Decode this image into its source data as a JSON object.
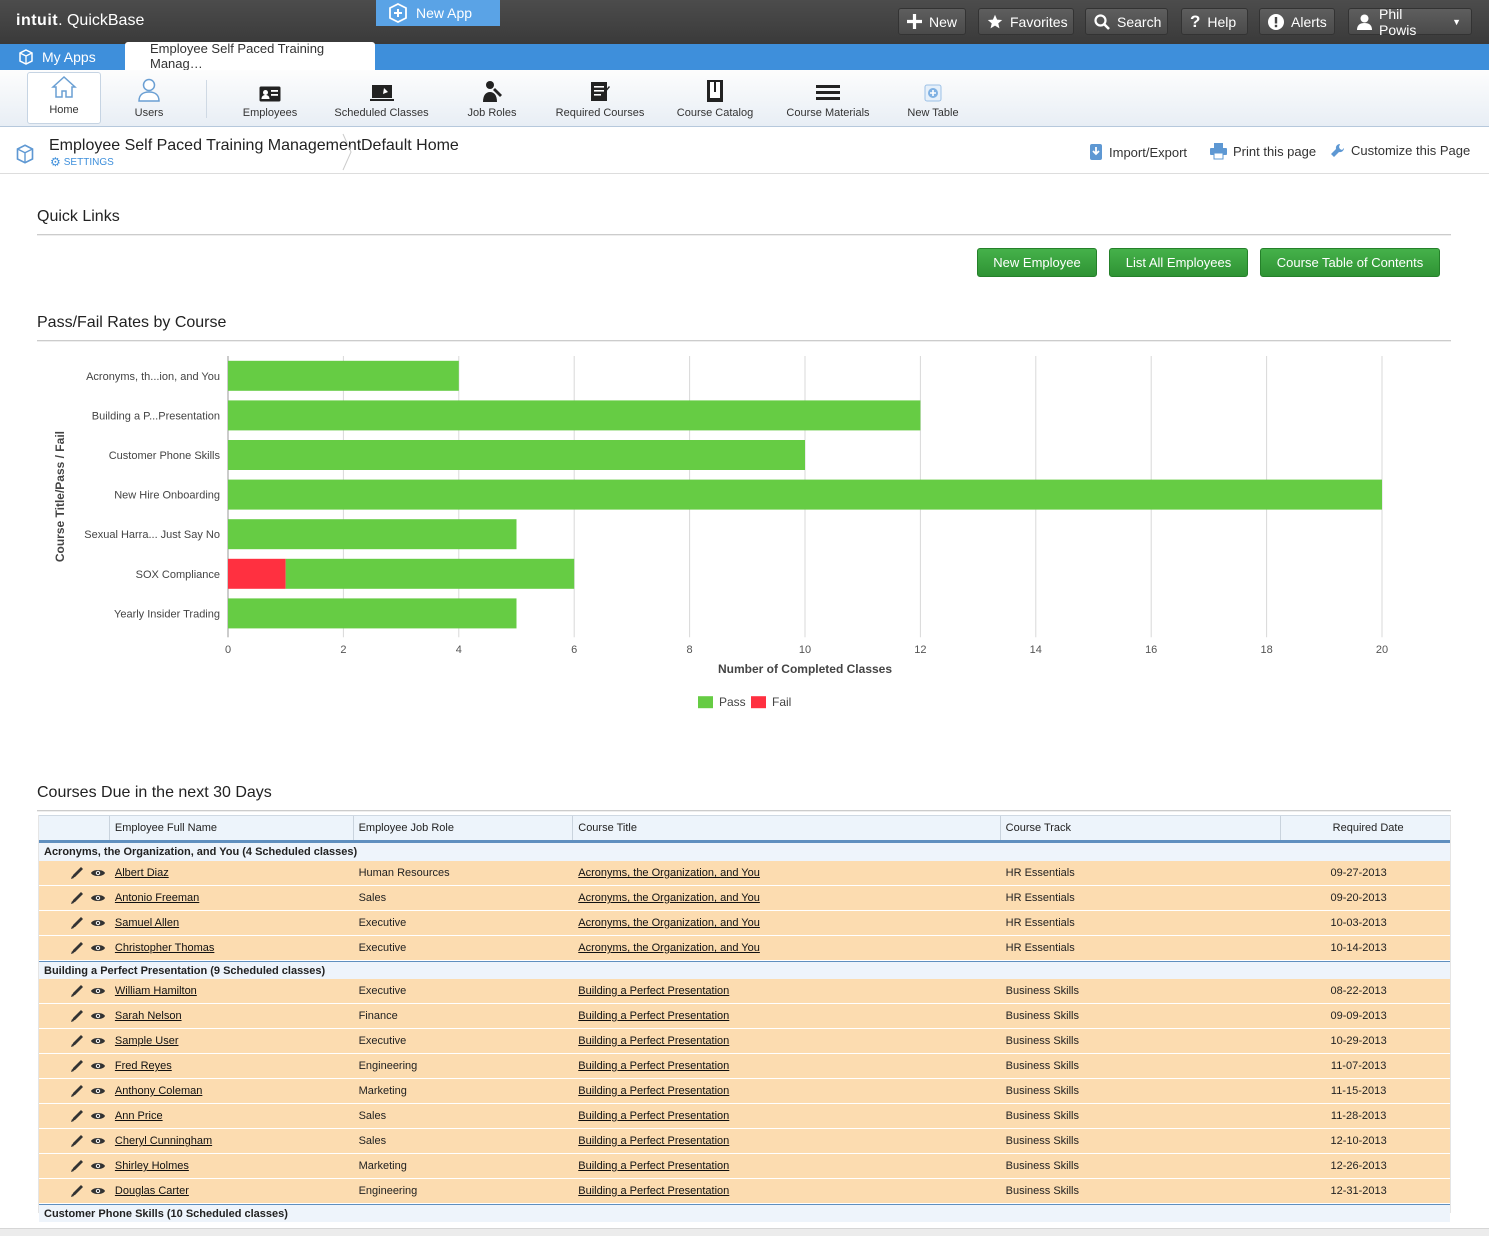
{
  "app": {
    "brand": "intuit",
    "product": "QuickBase",
    "topbar_buttons": [
      {
        "label": "New",
        "icon": "plus-icon"
      },
      {
        "label": "Favorites",
        "icon": "star-icon"
      },
      {
        "label": "Search",
        "icon": "search-icon"
      },
      {
        "label": "Help",
        "icon": "help-icon"
      },
      {
        "label": "Alerts",
        "icon": "alert-icon"
      },
      {
        "label": "Phil Powis",
        "icon": "user-icon"
      }
    ]
  },
  "tabs": {
    "my_apps": "My Apps",
    "active": "Employee Self Paced Training Manag…",
    "new_app": "New App"
  },
  "nav": [
    "Home",
    "Users",
    "Employees",
    "Scheduled Classes",
    "Job Roles",
    "Required Courses",
    "Course Catalog",
    "Course Materials",
    "New Table"
  ],
  "breadcrumb": {
    "app_title": "Employee Self Paced Training Management",
    "settings": "SETTINGS",
    "page": "Default Home",
    "actions": [
      "Import/Export",
      "Print this page",
      "Customize this Page"
    ]
  },
  "quick_links": {
    "title": "Quick Links",
    "buttons": [
      "New Employee",
      "List All Employees",
      "Course Table of Contents"
    ]
  },
  "chart_section": {
    "title": "Pass/Fail Rates by Course"
  },
  "chart_data": {
    "type": "bar",
    "orientation": "horizontal",
    "stacked": true,
    "categories": [
      "Acronyms, th...ion, and You",
      "Building a P...Presentation",
      "Customer Phone Skills",
      "New Hire Onboarding",
      "Sexual Harra... Just Say No",
      "SOX Compliance",
      "Yearly Insider Trading"
    ],
    "series": [
      {
        "name": "Fail",
        "color": "#ff3040",
        "values": [
          0,
          0,
          0,
          0,
          0,
          1,
          0
        ]
      },
      {
        "name": "Pass",
        "color": "#66cc44",
        "values": [
          4,
          12,
          10,
          20,
          5,
          5,
          5
        ]
      }
    ],
    "xlabel": "Number of Completed Classes",
    "ylabel": "Course Title/Pass / Fail",
    "xlim": [
      0,
      20
    ],
    "xticks": [
      0,
      2,
      4,
      6,
      8,
      10,
      12,
      14,
      16,
      18,
      20
    ],
    "grid": true,
    "legend": [
      "Pass",
      "Fail"
    ],
    "legend_position": "bottom-center"
  },
  "table": {
    "title": "Courses Due in the next 30 Days",
    "columns": [
      "Employee Full Name",
      "Employee Job Role",
      "Course Title",
      "Course Track",
      "Required Date"
    ],
    "groups": [
      {
        "label": "Acronyms, the Organization, and You  (4 Scheduled classes)",
        "rows": [
          [
            "Albert Diaz",
            "Human Resources",
            "Acronyms, the Organization, and You",
            "HR Essentials",
            "09-27-2013"
          ],
          [
            "Antonio Freeman",
            "Sales",
            "Acronyms, the Organization, and You",
            "HR Essentials",
            "09-20-2013"
          ],
          [
            "Samuel Allen",
            "Executive",
            "Acronyms, the Organization, and You",
            "HR Essentials",
            "10-03-2013"
          ],
          [
            "Christopher Thomas",
            "Executive",
            "Acronyms, the Organization, and You",
            "HR Essentials",
            "10-14-2013"
          ]
        ]
      },
      {
        "label": "Building a Perfect Presentation  (9 Scheduled classes)",
        "rows": [
          [
            "William Hamilton",
            "Executive",
            "Building a Perfect Presentation",
            "Business Skills",
            "08-22-2013"
          ],
          [
            "Sarah Nelson",
            "Finance",
            "Building a Perfect Presentation",
            "Business Skills",
            "09-09-2013"
          ],
          [
            "Sample User",
            "Executive",
            "Building a Perfect Presentation",
            "Business Skills",
            "10-29-2013"
          ],
          [
            "Fred Reyes",
            "Engineering",
            "Building a Perfect Presentation",
            "Business Skills",
            "11-07-2013"
          ],
          [
            "Anthony Coleman",
            "Marketing",
            "Building a Perfect Presentation",
            "Business Skills",
            "11-15-2013"
          ],
          [
            "Ann Price",
            "Sales",
            "Building a Perfect Presentation",
            "Business Skills",
            "11-28-2013"
          ],
          [
            "Cheryl Cunningham",
            "Sales",
            "Building a Perfect Presentation",
            "Business Skills",
            "12-10-2013"
          ],
          [
            "Shirley Holmes",
            "Marketing",
            "Building a Perfect Presentation",
            "Business Skills",
            "12-26-2013"
          ],
          [
            "Douglas Carter",
            "Engineering",
            "Building a Perfect Presentation",
            "Business Skills",
            "12-31-2013"
          ]
        ]
      },
      {
        "label": "Customer Phone Skills  (10 Scheduled classes)",
        "rows": []
      }
    ]
  }
}
